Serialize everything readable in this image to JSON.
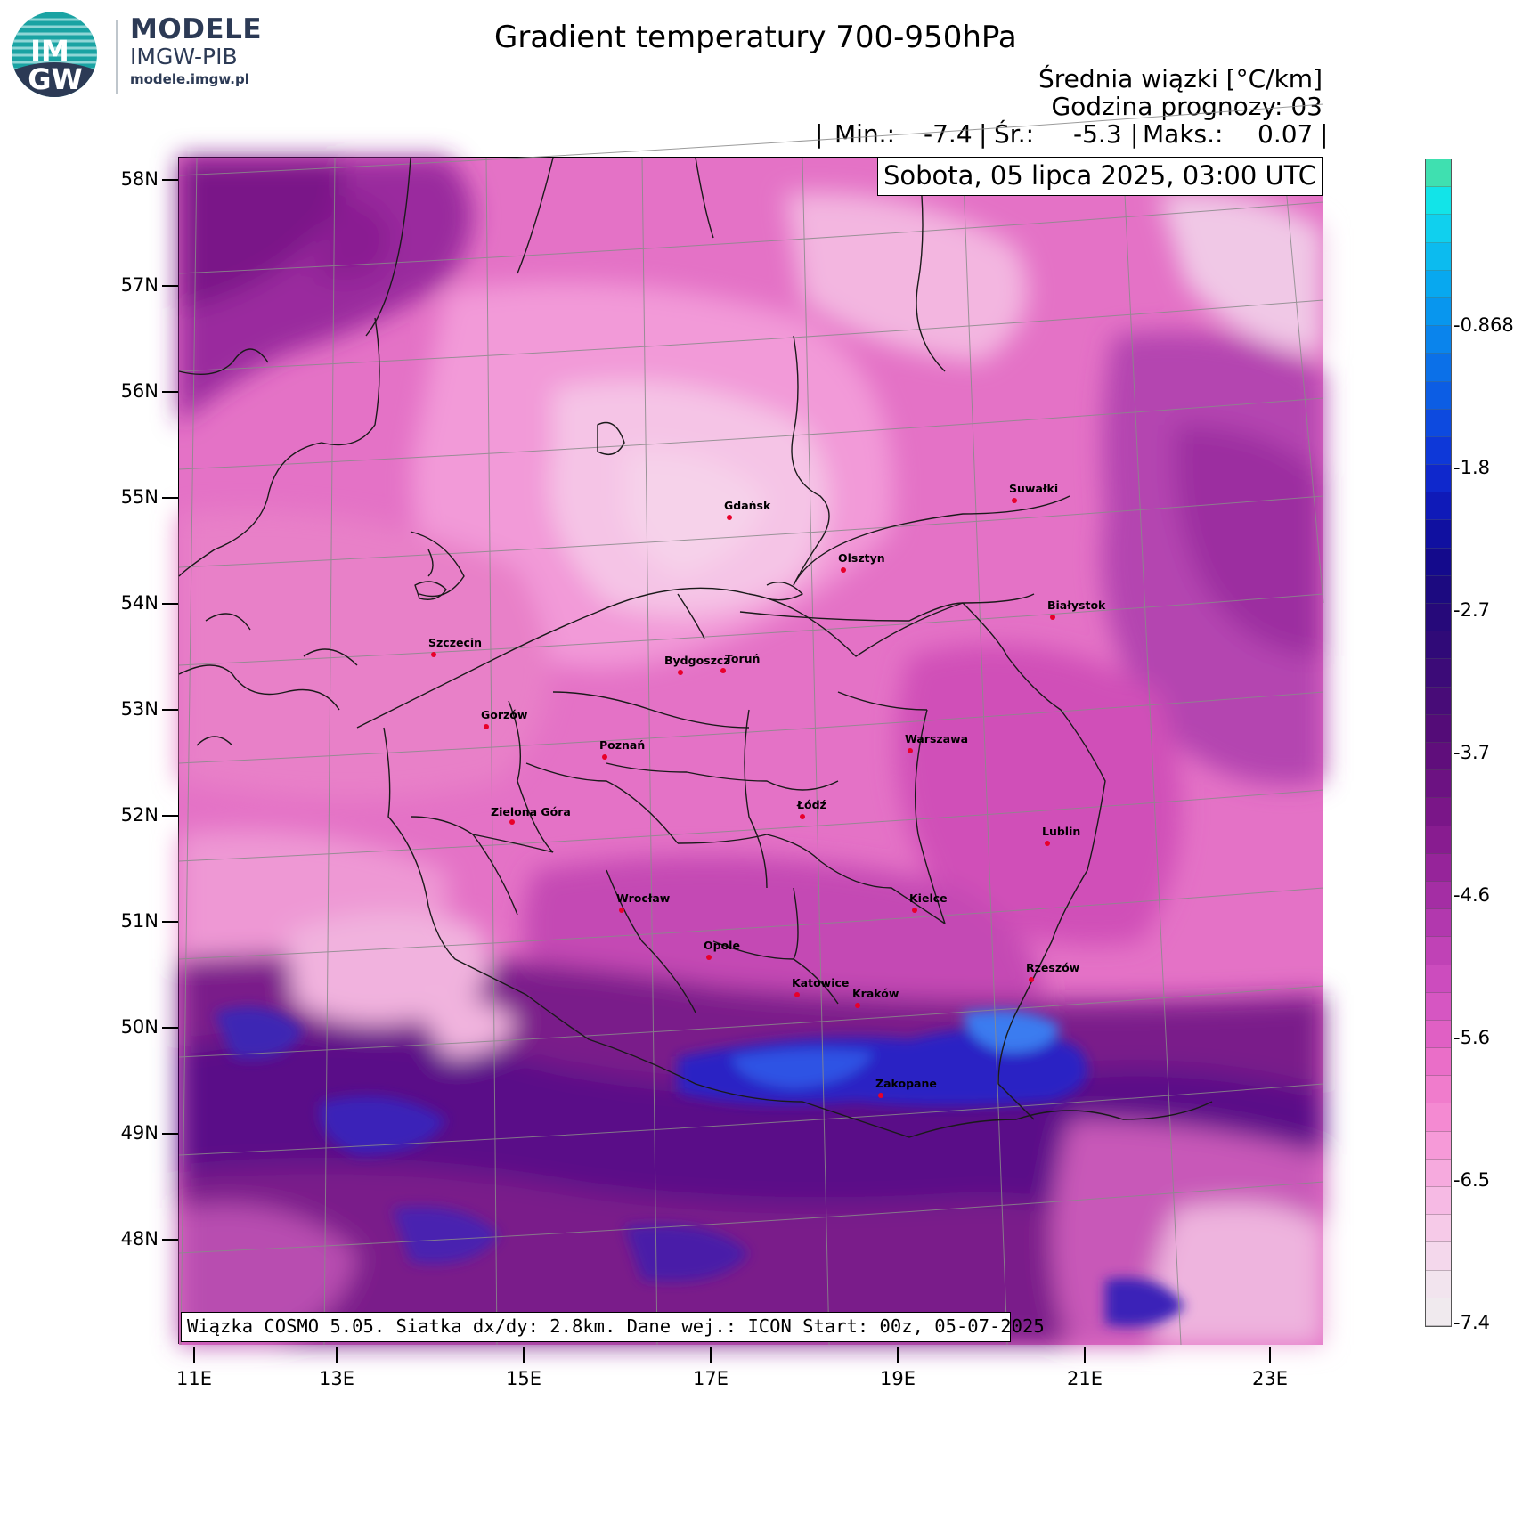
{
  "logo": {
    "badge_line1": "IM",
    "badge_line2": "GW",
    "title": "MODELE",
    "subtitle": "IMGW-PIB",
    "url": "modele.imgw.pl",
    "colors": {
      "badge": "#1aa3a3",
      "text": "#2c3a55"
    }
  },
  "header": {
    "title": "Gradient temperatury 700-950hPa",
    "unit_line": "Średnia wiązki [°C/km]",
    "hour_line": "Godzina prognozy: 03",
    "stats": {
      "sep": "|",
      "min_label": "Min.:",
      "min_value": "-7.4",
      "mean_label": "Śr.:",
      "mean_value": "-5.3",
      "max_label": "Maks.:",
      "max_value": "0.07"
    },
    "date": "Sobota, 05 lipca 2025, 03:00 UTC"
  },
  "map": {
    "model_info": "Wiązka COSMO 5.05. Siatka dx/dy: 2.8km. Dane wej.: ICON Start: 00z, 05-07-2025",
    "lat_labels": [
      "58N",
      "57N",
      "56N",
      "55N",
      "54N",
      "53N",
      "52N",
      "51N",
      "50N",
      "49N",
      "48N"
    ],
    "lon_labels": [
      "11E",
      "13E",
      "15E",
      "17E",
      "19E",
      "21E",
      "23E"
    ],
    "cities": [
      {
        "name": "Gdańsk"
      },
      {
        "name": "Olsztyn"
      },
      {
        "name": "Suwałki"
      },
      {
        "name": "Białystok"
      },
      {
        "name": "Szczecin"
      },
      {
        "name": "Bydgoszcz"
      },
      {
        "name": "Toruń"
      },
      {
        "name": "Gorzów"
      },
      {
        "name": "Poznań"
      },
      {
        "name": "Warszawa"
      },
      {
        "name": "Zielona Góra"
      },
      {
        "name": "Łódź"
      },
      {
        "name": "Lublin"
      },
      {
        "name": "Wrocław"
      },
      {
        "name": "Kielce"
      },
      {
        "name": "Opole"
      },
      {
        "name": "Rzeszów"
      },
      {
        "name": "Katowice"
      },
      {
        "name": "Kraków"
      },
      {
        "name": "Zakopane"
      }
    ]
  },
  "colorbar": {
    "unit": "°C/km",
    "tick_labels": [
      "-0.868",
      "-1.8",
      "-2.7",
      "-3.7",
      "-4.6",
      "-5.6",
      "-6.5",
      "-7.4"
    ],
    "colors_top_to_bottom": [
      "#3fe0b0",
      "#12e4e8",
      "#10d0ee",
      "#0cbbef",
      "#08a8ef",
      "#0896ee",
      "#0a84ec",
      "#0b70e8",
      "#0c5de4",
      "#0d4adf",
      "#0e38d8",
      "#0f28cc",
      "#0f1ab8",
      "#1010a0",
      "#140a8c",
      "#1c0a80",
      "#26097a",
      "#300a78",
      "#3c0b78",
      "#480c78",
      "#540c78",
      "#600e7c",
      "#6c1282",
      "#7a1688",
      "#881c90",
      "#96249a",
      "#a42ea4",
      "#b238ae",
      "#c042b6",
      "#cc4cbe",
      "#d656c2",
      "#e060c4",
      "#ea6ec8",
      "#f07ccc",
      "#f48ad2",
      "#f69ad8",
      "#f6aade",
      "#f6bae4",
      "#f6cae8",
      "#f4d8ec",
      "#f2e4ee",
      "#f0eaee"
    ]
  }
}
